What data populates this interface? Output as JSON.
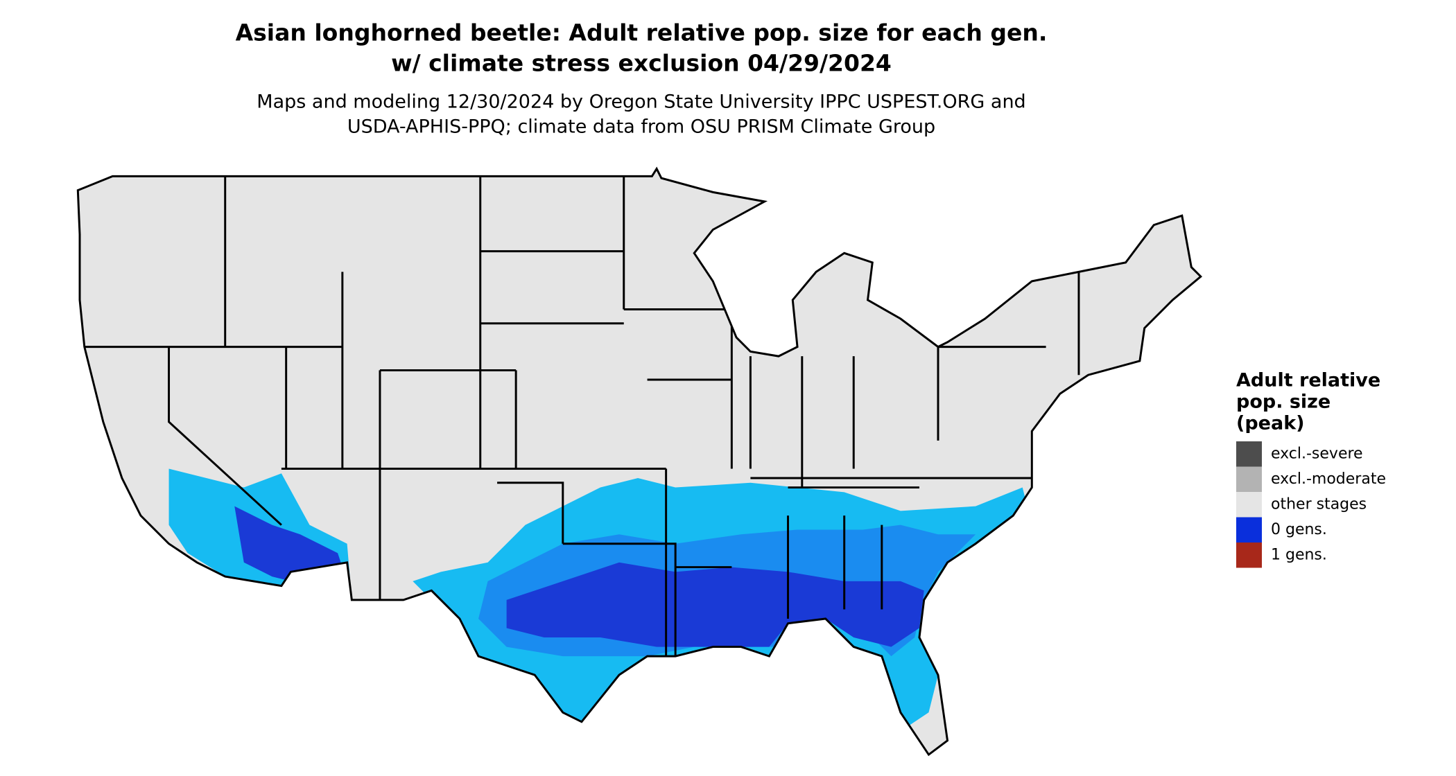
{
  "header": {
    "title": [
      "Asian longhorned beetle: Adult relative pop. size for each gen.",
      "w/ climate stress exclusion 04/29/2024"
    ],
    "subtitle": [
      "Maps and modeling 12/30/2024 by Oregon State University IPPC USPEST.ORG and",
      "USDA-APHIS-PPQ; climate data from OSU PRISM Climate Group"
    ]
  },
  "legend": {
    "title": [
      "Adult relative",
      "pop. size",
      "(peak)"
    ],
    "items": [
      {
        "label": "excl.-severe",
        "color": "#4d4d4d"
      },
      {
        "label": "excl.-moderate",
        "color": "#b3b3b3"
      },
      {
        "label": "other stages",
        "color": "#e5e5e5"
      },
      {
        "label": "0 gens.",
        "color": "#0a2fdc"
      },
      {
        "label": "1 gens.",
        "color": "#a8281a"
      }
    ]
  }
}
